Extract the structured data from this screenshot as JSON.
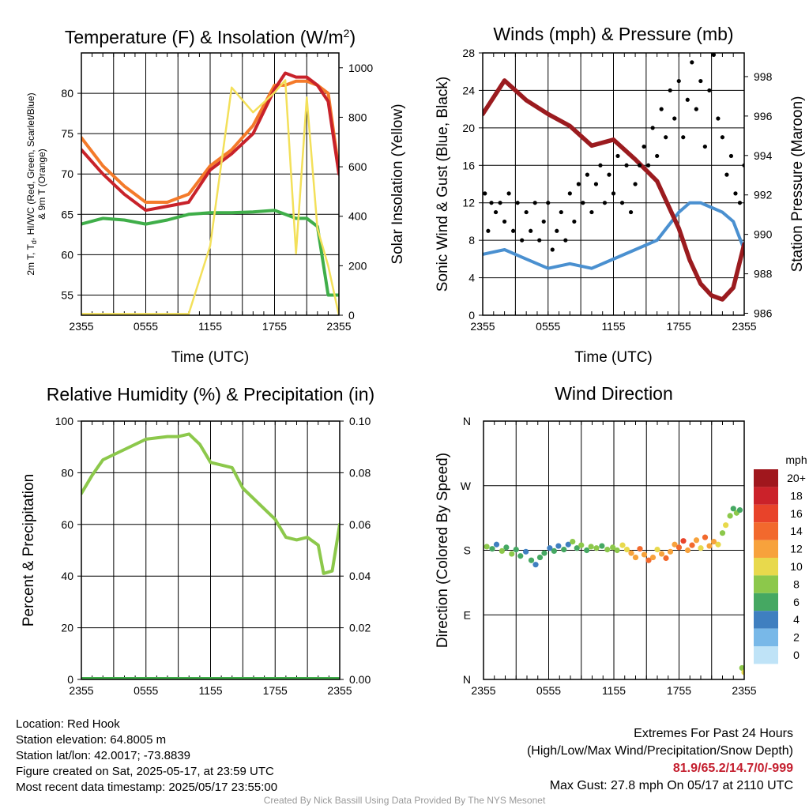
{
  "chart_data": [
    {
      "type": "line",
      "title": "Temperature (F) & Insolation (W/m²)",
      "xlabel": "Time (UTC)",
      "ylabel": "2m T, T_d, HI/WC (Red, Green, Scarlet/Blue) & 9m T (Orange)",
      "y2label": "Solar Insolation (Yellow)",
      "x_ticks": [
        "2355",
        "0555",
        "1155",
        "1755",
        "2355"
      ],
      "ylim": [
        52.5,
        85
      ],
      "y_ticks": [
        55,
        60,
        65,
        70,
        75,
        80
      ],
      "y2lim": [
        0,
        1060
      ],
      "y2_ticks": [
        0,
        200,
        400,
        600,
        800,
        1000
      ],
      "grid": true,
      "x_hours": [
        0,
        2,
        4,
        6,
        8,
        10,
        12,
        14,
        16,
        18,
        19,
        20,
        21,
        22,
        23,
        24
      ],
      "series": [
        {
          "name": "9m T",
          "color": "#f47a2a",
          "axis": "left",
          "values": [
            74.5,
            71,
            68.5,
            66.5,
            66.5,
            67.5,
            71,
            73,
            76,
            81,
            81,
            81.5,
            81.5,
            81,
            80,
            70.5
          ]
        },
        {
          "name": "2m T",
          "color": "#c8222a",
          "axis": "left",
          "values": [
            73,
            70,
            67.5,
            65.5,
            66,
            66.5,
            70.5,
            72.5,
            75,
            80.5,
            82.5,
            82,
            82,
            81,
            79,
            70
          ]
        },
        {
          "name": "Td",
          "color": "#3fae49",
          "axis": "left",
          "values": [
            63.8,
            64.5,
            64.3,
            63.8,
            64.3,
            65,
            65.2,
            65.2,
            65.3,
            65.5,
            65,
            64.5,
            64.5,
            63.5,
            55,
            55
          ]
        },
        {
          "name": "Solar Insolation",
          "color": "#f3e05a",
          "axis": "right",
          "values": [
            5,
            5,
            5,
            5,
            5,
            5,
            280,
            920,
            820,
            900,
            950,
            250,
            880,
            350,
            200,
            0
          ]
        }
      ]
    },
    {
      "type": "line",
      "title": "Winds (mph) & Pressure (mb)",
      "xlabel": "Time (UTC)",
      "ylabel": "Sonic Wind & Gust (Blue, Black)",
      "y2label": "Station Pressure (Maroon)",
      "x_ticks": [
        "2355",
        "0555",
        "1155",
        "1755",
        "2355"
      ],
      "ylim": [
        0,
        28
      ],
      "y_ticks": [
        0,
        4,
        8,
        12,
        16,
        20,
        24,
        28
      ],
      "y2lim": [
        985.9,
        999.2
      ],
      "y2_ticks": [
        986,
        988,
        990,
        992,
        994,
        996,
        998
      ],
      "grid": true,
      "x_hours": [
        0,
        2,
        4,
        6,
        8,
        10,
        12,
        14,
        16,
        18,
        19,
        20,
        21,
        22,
        23,
        24
      ],
      "series": [
        {
          "name": "Sonic Wind",
          "color": "#4a90d0",
          "axis": "left",
          "values": [
            6.5,
            7,
            6,
            5,
            5.5,
            5,
            6,
            7,
            8,
            11,
            12,
            12,
            11.5,
            11,
            10,
            7
          ]
        },
        {
          "name": "Station Pressure",
          "color": "#9b1b1f",
          "axis": "right",
          "values": [
            996.1,
            997.8,
            996.8,
            996.1,
            995.5,
            994.5,
            994.8,
            993.8,
            992.7,
            990.3,
            988.7,
            987.5,
            986.9,
            986.7,
            987.3,
            989.5
          ]
        },
        {
          "name": "Gust",
          "color": "#000000",
          "axis": "left",
          "points": [
            [
              0.2,
              13
            ],
            [
              0.5,
              9
            ],
            [
              0.8,
              12
            ],
            [
              1.2,
              11
            ],
            [
              1.6,
              12
            ],
            [
              2.0,
              10
            ],
            [
              2.4,
              13
            ],
            [
              2.8,
              9
            ],
            [
              3.2,
              12
            ],
            [
              3.6,
              8
            ],
            [
              4.0,
              11
            ],
            [
              4.4,
              9
            ],
            [
              4.8,
              12
            ],
            [
              5.2,
              8
            ],
            [
              5.6,
              10
            ],
            [
              6.0,
              12
            ],
            [
              6.4,
              7
            ],
            [
              6.8,
              9
            ],
            [
              7.2,
              11
            ],
            [
              7.6,
              8
            ],
            [
              8.0,
              13
            ],
            [
              8.4,
              10
            ],
            [
              8.8,
              14
            ],
            [
              9.2,
              12
            ],
            [
              9.6,
              15
            ],
            [
              10.0,
              11
            ],
            [
              10.4,
              14
            ],
            [
              10.8,
              16
            ],
            [
              11.2,
              12
            ],
            [
              11.6,
              15
            ],
            [
              12.0,
              13
            ],
            [
              12.4,
              17
            ],
            [
              12.8,
              12
            ],
            [
              13.2,
              16
            ],
            [
              13.6,
              11
            ],
            [
              14.0,
              14
            ],
            [
              14.4,
              16
            ],
            [
              14.8,
              18
            ],
            [
              15.2,
              16
            ],
            [
              15.6,
              20
            ],
            [
              16.0,
              17
            ],
            [
              16.4,
              22
            ],
            [
              16.8,
              19
            ],
            [
              17.2,
              24
            ],
            [
              17.6,
              21
            ],
            [
              18.0,
              25
            ],
            [
              18.4,
              19
            ],
            [
              18.8,
              23
            ],
            [
              19.2,
              27
            ],
            [
              19.6,
              22
            ],
            [
              20.0,
              25
            ],
            [
              20.4,
              18
            ],
            [
              20.8,
              24
            ],
            [
              21.2,
              27.8
            ],
            [
              21.6,
              21
            ],
            [
              22.0,
              19
            ],
            [
              22.4,
              15
            ],
            [
              22.8,
              17
            ],
            [
              23.2,
              13
            ],
            [
              23.6,
              12
            ],
            [
              24.0,
              16
            ]
          ]
        }
      ]
    },
    {
      "type": "line",
      "title": "Relative Humidity (%) & Precipitation (in)",
      "xlabel": "",
      "ylabel": "Percent & Precipitation",
      "x_ticks": [
        "2355",
        "0555",
        "1155",
        "1755",
        "2355"
      ],
      "ylim": [
        0,
        100
      ],
      "y_ticks": [
        0,
        20,
        40,
        60,
        80,
        100
      ],
      "y2lim": [
        0,
        0.1
      ],
      "y2_ticks": [
        "0.00",
        "0.02",
        "0.04",
        "0.06",
        "0.08",
        "0.10"
      ],
      "grid": true,
      "x_hours": [
        0,
        1,
        2,
        4,
        6,
        8,
        9,
        10,
        11,
        12,
        14,
        15,
        16,
        17,
        18,
        19,
        20,
        21,
        22,
        22.5,
        23.3,
        24
      ],
      "series": [
        {
          "name": "Relative Humidity",
          "color": "#8cc84b",
          "axis": "left",
          "values": [
            72,
            79,
            85,
            89,
            93,
            94,
            94,
            95,
            91,
            84,
            82,
            74,
            70,
            66,
            62,
            55,
            54,
            55,
            52,
            41,
            42,
            60
          ]
        },
        {
          "name": "Precipitation",
          "color": "#3fae49",
          "axis": "right",
          "values": [
            0,
            0,
            0,
            0,
            0,
            0,
            0,
            0,
            0,
            0,
            0,
            0,
            0,
            0,
            0,
            0,
            0,
            0,
            0,
            0,
            0,
            0
          ]
        }
      ]
    },
    {
      "type": "scatter",
      "title": "Wind Direction",
      "xlabel": "",
      "ylabel": "Direction (Colored By Speed)",
      "x_ticks": [
        "2355",
        "0555",
        "1155",
        "1755",
        "2355"
      ],
      "y_tick_labels": [
        "N",
        "E",
        "S",
        "W",
        "N"
      ],
      "ylim": [
        0,
        360
      ],
      "grid": true,
      "colorbar": {
        "unit": "mph",
        "labels": [
          "20+",
          "18",
          "16",
          "14",
          "12",
          "10",
          "8",
          "6",
          "4",
          "2",
          "0"
        ],
        "colors": [
          "#a0171d",
          "#cb222a",
          "#e8432a",
          "#f2692d",
          "#f7a23c",
          "#e8d94c",
          "#8cc84b",
          "#45a862",
          "#3f7fc0",
          "#78b8e8",
          "#bfe3f7"
        ]
      },
      "points": [
        [
          0.3,
          185,
          7
        ],
        [
          0.8,
          182,
          6
        ],
        [
          1.2,
          188,
          4
        ],
        [
          1.7,
          179,
          8
        ],
        [
          2.1,
          184,
          6
        ],
        [
          2.6,
          175,
          7
        ],
        [
          3.0,
          181,
          6
        ],
        [
          3.4,
          172,
          5
        ],
        [
          3.9,
          178,
          4
        ],
        [
          4.4,
          166,
          6
        ],
        [
          4.8,
          160,
          4
        ],
        [
          5.2,
          170,
          5
        ],
        [
          5.6,
          176,
          6
        ],
        [
          6.1,
          183,
          4
        ],
        [
          6.5,
          179,
          5
        ],
        [
          6.9,
          186,
          4
        ],
        [
          7.4,
          181,
          6
        ],
        [
          7.8,
          188,
          4
        ],
        [
          8.2,
          192,
          7
        ],
        [
          8.6,
          183,
          6
        ],
        [
          9.0,
          187,
          8
        ],
        [
          9.5,
          180,
          6
        ],
        [
          9.9,
          185,
          7
        ],
        [
          10.4,
          183,
          8
        ],
        [
          10.9,
          186,
          6
        ],
        [
          11.4,
          181,
          8
        ],
        [
          11.9,
          184,
          7
        ],
        [
          12.3,
          180,
          8
        ],
        [
          12.8,
          187,
          9
        ],
        [
          13.2,
          181,
          10
        ],
        [
          13.6,
          176,
          11
        ],
        [
          14.0,
          170,
          12
        ],
        [
          14.4,
          182,
          14
        ],
        [
          14.8,
          174,
          12
        ],
        [
          15.2,
          166,
          13
        ],
        [
          15.6,
          170,
          11
        ],
        [
          16.0,
          181,
          10
        ],
        [
          16.4,
          175,
          12
        ],
        [
          16.8,
          169,
          13
        ],
        [
          17.2,
          178,
          12
        ],
        [
          17.6,
          188,
          11
        ],
        [
          18.0,
          184,
          13
        ],
        [
          18.4,
          193,
          15
        ],
        [
          18.8,
          180,
          12
        ],
        [
          19.2,
          187,
          14
        ],
        [
          19.6,
          194,
          11
        ],
        [
          20.0,
          183,
          10
        ],
        [
          20.4,
          198,
          13
        ],
        [
          20.8,
          186,
          12
        ],
        [
          21.2,
          192,
          11
        ],
        [
          21.6,
          188,
          10
        ],
        [
          22.0,
          204,
          8
        ],
        [
          22.3,
          215,
          9
        ],
        [
          22.7,
          228,
          7
        ],
        [
          23.0,
          238,
          6
        ],
        [
          23.3,
          232,
          8
        ],
        [
          23.6,
          236,
          6
        ],
        [
          23.8,
          16,
          7
        ],
        [
          24.0,
          10,
          10
        ]
      ]
    }
  ],
  "info": {
    "location": "Location: Red Hook",
    "elevation": "Station elevation: 64.8005 m",
    "latlon": "Station lat/lon: 42.0017; -73.8839",
    "created": "Figure created on Sat, 2025-05-17, at 23:59 UTC",
    "recent": "Most recent data timestamp: 2025/05/17 23:55:00"
  },
  "extremes": {
    "title": "Extremes For Past 24 Hours",
    "subtitle": "(High/Low/Max Wind/Precipitation/Snow Depth)",
    "values": "81.9/65.2/14.7/0/-999",
    "gust": "Max Gust: 27.8 mph On 05/17 at 2110 UTC"
  },
  "credit": "Created By Nick Bassill Using Data Provided By The NYS Mesonet",
  "colors": {
    "grid": "#000000",
    "extremes_values": "#c41e2e",
    "credit": "#999999"
  }
}
